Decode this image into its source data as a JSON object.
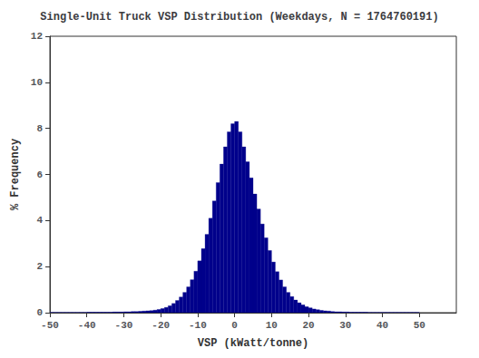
{
  "chart_data": {
    "type": "histogram",
    "title": "Single-Unit Truck VSP Distribution (Weekdays, N = 1764760191)",
    "xlabel": "VSP (kWatt/tonne)",
    "ylabel": "% Frequency",
    "bins": [
      -50,
      -49,
      -48,
      -47,
      -46,
      -45,
      -44,
      -43,
      -42,
      -41,
      -40,
      -39,
      -38,
      -37,
      -36,
      -35,
      -34,
      -33,
      -32,
      -31,
      -30,
      -29,
      -28,
      -27,
      -26,
      -25,
      -24,
      -23,
      -22,
      -21,
      -20,
      -19,
      -18,
      -17,
      -16,
      -15,
      -14,
      -13,
      -12,
      -11,
      -10,
      -9,
      -8,
      -7,
      -6,
      -5,
      -4,
      -3,
      -2,
      -1,
      0,
      1,
      2,
      3,
      4,
      5,
      6,
      7,
      8,
      9,
      10,
      11,
      12,
      13,
      14,
      15,
      16,
      17,
      18,
      19,
      20,
      21,
      22,
      23,
      24,
      25,
      26,
      27,
      28,
      29,
      30,
      31,
      32,
      33,
      34,
      35,
      36,
      37,
      38,
      39,
      40,
      41,
      42,
      43,
      44,
      45,
      46,
      47,
      48,
      49,
      50
    ],
    "values": [
      0.01,
      0.01,
      0.01,
      0.01,
      0.01,
      0.01,
      0.01,
      0.01,
      0.01,
      0.01,
      0.02,
      0.02,
      0.02,
      0.02,
      0.02,
      0.02,
      0.02,
      0.03,
      0.03,
      0.03,
      0.04,
      0.04,
      0.05,
      0.05,
      0.06,
      0.07,
      0.08,
      0.09,
      0.11,
      0.14,
      0.18,
      0.23,
      0.3,
      0.4,
      0.53,
      0.68,
      0.88,
      1.12,
      1.43,
      1.8,
      2.25,
      2.78,
      3.4,
      4.1,
      4.85,
      5.65,
      6.45,
      7.2,
      7.85,
      8.2,
      8.3,
      7.85,
      7.2,
      6.55,
      5.85,
      5.15,
      4.5,
      3.85,
      3.25,
      2.7,
      2.2,
      1.78,
      1.42,
      1.12,
      0.88,
      0.7,
      0.55,
      0.43,
      0.34,
      0.26,
      0.21,
      0.16,
      0.13,
      0.1,
      0.08,
      0.07,
      0.05,
      0.04,
      0.04,
      0.03,
      0.03,
      0.02,
      0.02,
      0.02,
      0.02,
      0.02,
      0.01,
      0.01,
      0.01,
      0.01,
      0.01,
      0.01,
      0.01,
      0.01,
      0.01,
      0.01,
      0.01,
      0.01,
      0.01,
      0.01
    ],
    "color": "#00008B",
    "xlim": [
      -50,
      60
    ],
    "ylim": [
      0,
      12
    ],
    "xticks": [
      -50,
      -40,
      -30,
      -20,
      -10,
      0,
      10,
      20,
      30,
      40,
      50
    ],
    "yticks": [
      0,
      2,
      4,
      6,
      8,
      10,
      12
    ],
    "grid": false
  }
}
